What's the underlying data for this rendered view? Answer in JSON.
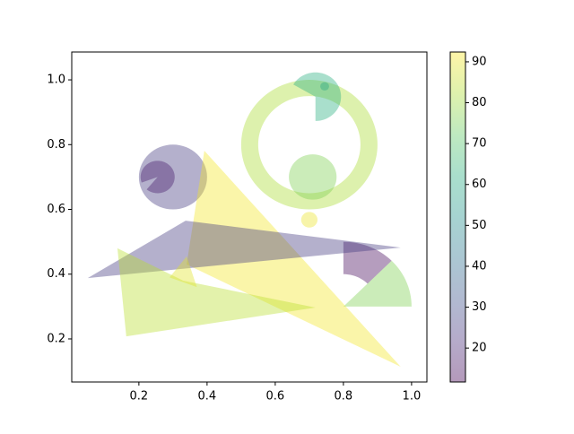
{
  "chart_data": {
    "type": "patches",
    "colormap": "viridis",
    "alpha": 0.4,
    "xlim": [
      0.003,
      1.045
    ],
    "ylim": [
      0.067,
      1.086
    ],
    "xticks": [
      0.2,
      0.4,
      0.6,
      0.8,
      {
        "value": 1,
        "label": "1.0"
      }
    ],
    "yticks": [
      0.2,
      0.4,
      0.6,
      0.8,
      {
        "value": 1,
        "label": "1.0"
      }
    ],
    "colorbar": {
      "clim": [
        11.7,
        92.4
      ],
      "ticks": [
        20,
        30,
        40,
        50,
        60,
        70,
        80,
        90
      ]
    },
    "patches": [
      {
        "shape": "circle",
        "center": [
          0.3,
          0.7
        ],
        "radius": 0.1,
        "value": 25
      },
      {
        "shape": "wedge",
        "center": [
          0.255,
          0.7
        ],
        "radius": 0.05,
        "theta1": 230,
        "theta2": 560,
        "value": 18
      },
      {
        "shape": "wedge",
        "center": [
          0.7,
          0.8
        ],
        "radius": 0.2,
        "theta1": 0,
        "theta2": 360,
        "width": 0.05,
        "value": 82
      },
      {
        "shape": "circle",
        "center": [
          0.71,
          0.7
        ],
        "radius": 0.07,
        "value": 76
      },
      {
        "shape": "circle",
        "center": [
          0.7,
          0.568
        ],
        "radius": 0.024,
        "value": 90
      },
      {
        "shape": "wedge",
        "center": [
          0.718,
          0.948
        ],
        "radius": 0.075,
        "theta1": -90,
        "theta2": 150,
        "value": 62
      },
      {
        "shape": "circle",
        "center": [
          0.745,
          0.98
        ],
        "radius": 0.013,
        "value": 60
      },
      {
        "shape": "wedge",
        "center": [
          0.8,
          0.3
        ],
        "radius": 0.2,
        "theta1": 0,
        "theta2": 45,
        "value": 76
      },
      {
        "shape": "wedge",
        "center": [
          0.8,
          0.3
        ],
        "radius": 0.2,
        "theta1": 45,
        "theta2": 90,
        "width": 0.1,
        "value": 14
      },
      {
        "shape": "polygon",
        "points": [
          [
            0.392,
            0.781
          ],
          [
            0.968,
            0.114
          ],
          [
            0.34,
            0.43
          ]
        ],
        "value": 91
      },
      {
        "shape": "polygon",
        "points": [
          [
            0.05,
            0.388
          ],
          [
            0.337,
            0.565
          ],
          [
            0.968,
            0.482
          ]
        ],
        "value": 25
      },
      {
        "shape": "polygon",
        "points": [
          [
            0.137,
            0.48
          ],
          [
            0.163,
            0.208
          ],
          [
            0.718,
            0.297
          ],
          [
            0.33,
            0.38
          ]
        ],
        "value": 84
      },
      {
        "shape": "polygon",
        "points": [
          [
            0.29,
            0.39
          ],
          [
            0.34,
            0.455
          ],
          [
            0.37,
            0.36
          ]
        ],
        "value": 89
      }
    ]
  }
}
